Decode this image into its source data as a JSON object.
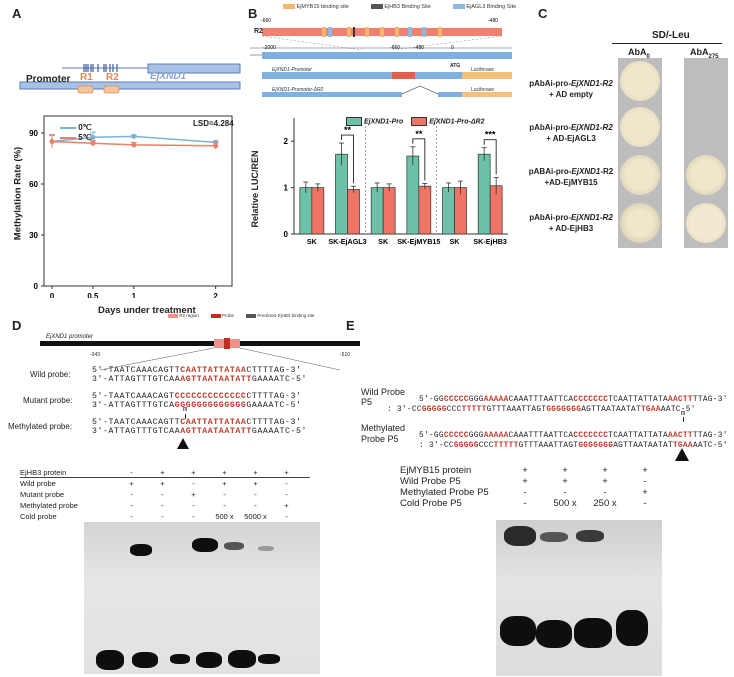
{
  "panel_labels": {
    "a": "A",
    "b": "B",
    "c": "C",
    "d": "D",
    "e": "E"
  },
  "panel_a": {
    "promoter_label": "Promoter",
    "r1": "R1",
    "r2": "R2",
    "gene_label": "EjXND1",
    "lsd": "LSD=4.284",
    "legend": [
      "0℃",
      "5℃"
    ],
    "ylabel": "Methylation Rate (%)",
    "xlabel": "Days under treatment",
    "colors": {
      "series0": "#7bb3d4",
      "series1": "#e8806a"
    }
  },
  "panel_b": {
    "legend_sites": [
      "EjMYB15 binding site",
      "EjHB3 Binding Site",
      "EjAGL3 Binding Site"
    ],
    "r2_label": "R2",
    "scale_top": [
      "-660",
      "-480"
    ],
    "scale_bottom": [
      "-2000",
      "-660",
      "-480",
      "0"
    ],
    "atg": "ATG",
    "construct1": "EjXND1-Promoter",
    "construct2": "EjXND1-Promoter-ΔR2",
    "r2_box": "R2",
    "luciferase": "Luciferase",
    "legend_bars": [
      "EjXND1-Pro",
      "EjXND1-Pro-ΔR2"
    ],
    "ylabel": "Relative LUC/REN",
    "significance": [
      "**",
      "**",
      "***"
    ],
    "colors": {
      "pro": "#6dc1a8",
      "delta": "#ee7566"
    }
  },
  "panel_c": {
    "title": "SD/-Leu",
    "col1": "AbA",
    "col1_sub": "0",
    "col2": "AbA",
    "col2_sub": "275",
    "rows": [
      {
        "line1a": "pAbAi-pro-",
        "line1b": "EjXND1-R2",
        "line2": "+ AD empty"
      },
      {
        "line1a": "pAbAi-pro-",
        "line1b": "EjXND1-R2",
        "line2": "+ AD-EjAGL3"
      },
      {
        "line1a": "pABAi-pro-",
        "line1b": "EjXND1",
        "line1c": "-R2",
        "line2": "+AD-EjMYB15"
      },
      {
        "line1a": "pAbAi-pro-",
        "line1b": "EjXND1-R2",
        "line2": "+ AD-EjHB3"
      }
    ]
  },
  "panel_d": {
    "legend": [
      "R2 region",
      "Probe",
      "Predicted EjHB3 binding site"
    ],
    "promoter": "EjXND1 promoter",
    "coord_left": "-343",
    "coord_right": "-510",
    "probes": [
      {
        "label": "Wild probe:",
        "s1a": "5'-TAATCAAACAGTT",
        "s1b": "CAATTATTATAA",
        "s1c": "CTTTTAG-3'",
        "s2a": "3'-ATTAGTTTGTCAA",
        "s2b": "AGTTAATAATATT",
        "s2c": "GAAAATC-5'"
      },
      {
        "label": "Mutant probe:",
        "s1a": "5'-TAATCAAACAGT",
        "s1b": "CCCCCCCCCCCCC",
        "s1c": "CTTTTAG-3'",
        "s2a": "3'-ATTAGTTTGTCA",
        "s2b": "GGGGGGGGGGGGG",
        "s2c": "GAAAATC-5'"
      },
      {
        "label": "Methylated probe:",
        "s1a": "5'-TAATCAAACAGTT",
        "s1b": "CAATTATTATAA",
        "s1c": "CTTTTAG-3'",
        "s2a": "3'-ATTAGTTTGTCAA",
        "s2b": "AGTTAATAATATT",
        "s2c": "GAAAATC-5'",
        "mark": "m"
      }
    ],
    "table_rows": [
      {
        "label": "EjHB3 protein",
        "cells": [
          "-",
          "+",
          "+",
          "+",
          "+",
          "+"
        ]
      },
      {
        "label": "Wild probe",
        "cells": [
          "+",
          "+",
          "-",
          "+",
          "+",
          "-"
        ]
      },
      {
        "label": "Mutant probe",
        "cells": [
          "-",
          "-",
          "+",
          "-",
          "-",
          "-"
        ]
      },
      {
        "label": "Methylated probe",
        "cells": [
          "-",
          "-",
          "-",
          "-",
          "-",
          "+"
        ]
      },
      {
        "label": "Cold probe",
        "cells": [
          "-",
          "-",
          "-",
          "500 x",
          "5000 x",
          "-"
        ]
      }
    ]
  },
  "panel_e": {
    "wild_label": "Wild Probe",
    "p5_label": "P5",
    "meth_label1": "Methylated",
    "meth_label2": "Probe P5",
    "w1": [
      "5'-GG",
      "CCCCC",
      "GGG",
      "AAAAA",
      "CAAATTTAATTCA",
      "CCCCCCC",
      "TCAATTATTATA",
      "AACTT",
      "TTAG-3'"
    ],
    "w2": [
      ": 3'-CC",
      "GGGGG",
      "CCC",
      "TTTTT",
      "GTTTAAATTAGT",
      "GGGGGGG",
      "AGTTAATAATAT",
      "TGAA",
      "AATC-5'"
    ],
    "mark": "m",
    "table_rows": [
      {
        "label": "EjMYB15 protein",
        "cells": [
          "+",
          "+",
          "+",
          "+"
        ]
      },
      {
        "label": "Wild Probe P5",
        "cells": [
          "+",
          "+",
          "+",
          "-"
        ]
      },
      {
        "label": "Methylated Probe P5",
        "cells": [
          "-",
          "-",
          "-",
          "+"
        ]
      },
      {
        "label": "Cold Probe P5",
        "cells": [
          "-",
          "500 x",
          "250 x",
          "-"
        ]
      }
    ]
  },
  "chart_data": [
    {
      "type": "line",
      "panel": "A",
      "x": [
        0,
        0.5,
        1,
        2
      ],
      "xlim": [
        0,
        2.2
      ],
      "xticks": [
        "0",
        "0.5",
        "1",
        "2"
      ],
      "ylim": [
        0,
        100
      ],
      "yticks": [
        "0",
        "30",
        "60",
        "90"
      ],
      "ylabel": "Methylation Rate (%)",
      "xlabel": "Days under treatment",
      "series": [
        {
          "name": "0℃",
          "values": [
            85,
            87.5,
            88,
            84.5
          ],
          "errors": [
            3.5,
            3,
            0.8,
            1
          ]
        },
        {
          "name": "5℃",
          "values": [
            85,
            84,
            83,
            82.5
          ],
          "errors": [
            4,
            1.5,
            1.5,
            2
          ]
        }
      ]
    },
    {
      "type": "bar",
      "panel": "B",
      "categories": [
        "SK",
        "SK-EjAGL3",
        "SK",
        "SK-EjMYB15",
        "SK",
        "SK-EjHB3"
      ],
      "ylim": [
        0,
        2.5
      ],
      "yticks": [
        "0",
        "1",
        "2"
      ],
      "ylabel": "Relative LUC/REN",
      "series": [
        {
          "name": "EjXND1-Pro",
          "values": [
            1.0,
            1.72,
            1.0,
            1.68,
            1.0,
            1.72
          ],
          "errors": [
            0.12,
            0.24,
            0.1,
            0.2,
            0.1,
            0.14
          ]
        },
        {
          "name": "EjXND1-Pro-ΔR2",
          "values": [
            1.0,
            0.96,
            1.0,
            1.03,
            1.0,
            1.04
          ],
          "errors": [
            0.08,
            0.07,
            0.08,
            0.06,
            0.14,
            0.18
          ]
        }
      ]
    }
  ]
}
